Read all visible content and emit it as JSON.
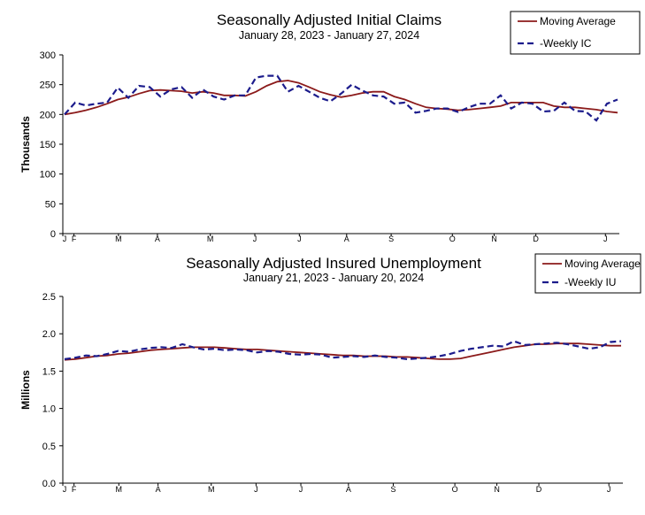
{
  "colors": {
    "moving_average": "#8b1a1a",
    "weekly": "#1c1c8c",
    "axis": "#000000",
    "background": "#ffffff"
  },
  "chart_data": [
    {
      "type": "line",
      "title": "Seasonally Adjusted Initial Claims",
      "subtitle": "January 28, 2023 - January 27, 2024",
      "ylabel": "Thousands",
      "xlabel": "",
      "ylim": [
        0,
        300
      ],
      "yticks": [
        "0",
        "50",
        "100",
        "150",
        "200",
        "250",
        "300"
      ],
      "xticks": [
        "J",
        "F",
        "M",
        "A",
        "M",
        "J",
        "J",
        "A",
        "S",
        "O",
        "N",
        "D",
        "J"
      ],
      "grid": false,
      "legend_position": "top-right",
      "x": [
        "2023-01-28",
        "2023-02-04",
        "2023-02-11",
        "2023-02-18",
        "2023-02-25",
        "2023-03-04",
        "2023-03-11",
        "2023-03-18",
        "2023-03-25",
        "2023-04-01",
        "2023-04-08",
        "2023-04-15",
        "2023-04-22",
        "2023-04-29",
        "2023-05-06",
        "2023-05-13",
        "2023-05-20",
        "2023-05-27",
        "2023-06-03",
        "2023-06-10",
        "2023-06-17",
        "2023-06-24",
        "2023-07-01",
        "2023-07-08",
        "2023-07-15",
        "2023-07-22",
        "2023-07-29",
        "2023-08-05",
        "2023-08-12",
        "2023-08-19",
        "2023-08-26",
        "2023-09-02",
        "2023-09-09",
        "2023-09-16",
        "2023-09-23",
        "2023-09-30",
        "2023-10-07",
        "2023-10-14",
        "2023-10-21",
        "2023-10-28",
        "2023-11-04",
        "2023-11-11",
        "2023-11-18",
        "2023-11-25",
        "2023-12-02",
        "2023-12-09",
        "2023-12-16",
        "2023-12-23",
        "2023-12-30",
        "2024-01-06",
        "2024-01-13",
        "2024-01-20",
        "2024-01-27"
      ],
      "series": [
        {
          "name": "Moving Average",
          "values": [
            200,
            203,
            207,
            212,
            218,
            225,
            229,
            235,
            240,
            241,
            240,
            239,
            236,
            238,
            236,
            232,
            232,
            231,
            238,
            248,
            255,
            257,
            253,
            246,
            238,
            233,
            229,
            232,
            236,
            238,
            238,
            230,
            225,
            218,
            212,
            210,
            209,
            207,
            208,
            210,
            212,
            214,
            220,
            220,
            220,
            220,
            214,
            212,
            212,
            210,
            208,
            205,
            203
          ]
        },
        {
          "name": "Weekly IC",
          "values": [
            200,
            220,
            215,
            218,
            220,
            245,
            228,
            248,
            246,
            230,
            242,
            246,
            228,
            242,
            230,
            225,
            232,
            232,
            262,
            265,
            265,
            238,
            248,
            238,
            228,
            222,
            235,
            250,
            240,
            232,
            230,
            218,
            220,
            203,
            206,
            210,
            210,
            204,
            212,
            218,
            218,
            232,
            210,
            220,
            218,
            205,
            206,
            220,
            206,
            205,
            190,
            218,
            225
          ]
        }
      ]
    },
    {
      "type": "line",
      "title": "Seasonally Adjusted Insured Unemployment",
      "subtitle": "January 21, 2023 - January 20, 2024",
      "ylabel": "Millions",
      "xlabel": "",
      "ylim": [
        0.0,
        2.5
      ],
      "yticks": [
        "0.0",
        "0.5",
        "1.0",
        "1.5",
        "2.0",
        "2.5"
      ],
      "xticks": [
        "J",
        "F",
        "M",
        "A",
        "M",
        "J",
        "J",
        "A",
        "S",
        "O",
        "N",
        "D",
        "J"
      ],
      "grid": false,
      "legend_position": "top-right",
      "x": [
        "2023-01-21",
        "2023-01-28",
        "2023-02-04",
        "2023-02-11",
        "2023-02-18",
        "2023-02-25",
        "2023-03-04",
        "2023-03-11",
        "2023-03-18",
        "2023-03-25",
        "2023-04-01",
        "2023-04-08",
        "2023-04-15",
        "2023-04-22",
        "2023-04-29",
        "2023-05-06",
        "2023-05-13",
        "2023-05-20",
        "2023-05-27",
        "2023-06-03",
        "2023-06-10",
        "2023-06-17",
        "2023-06-24",
        "2023-07-01",
        "2023-07-08",
        "2023-07-15",
        "2023-07-22",
        "2023-07-29",
        "2023-08-05",
        "2023-08-12",
        "2023-08-19",
        "2023-08-26",
        "2023-09-02",
        "2023-09-09",
        "2023-09-16",
        "2023-09-23",
        "2023-09-30",
        "2023-10-07",
        "2023-10-14",
        "2023-10-21",
        "2023-10-28",
        "2023-11-04",
        "2023-11-11",
        "2023-11-18",
        "2023-11-25",
        "2023-12-02",
        "2023-12-09",
        "2023-12-16",
        "2023-12-23",
        "2023-12-30",
        "2024-01-06",
        "2024-01-13",
        "2024-01-20"
      ],
      "series": [
        {
          "name": "Moving Average",
          "values": [
            1.65,
            1.66,
            1.68,
            1.7,
            1.71,
            1.73,
            1.74,
            1.76,
            1.78,
            1.79,
            1.8,
            1.81,
            1.82,
            1.82,
            1.82,
            1.81,
            1.8,
            1.79,
            1.79,
            1.78,
            1.77,
            1.76,
            1.75,
            1.74,
            1.73,
            1.72,
            1.71,
            1.71,
            1.7,
            1.7,
            1.7,
            1.69,
            1.69,
            1.68,
            1.67,
            1.66,
            1.66,
            1.67,
            1.7,
            1.73,
            1.76,
            1.79,
            1.82,
            1.84,
            1.86,
            1.86,
            1.87,
            1.87,
            1.87,
            1.86,
            1.85,
            1.84,
            1.84
          ]
        },
        {
          "name": "Weekly IU",
          "values": [
            1.66,
            1.68,
            1.71,
            1.7,
            1.73,
            1.77,
            1.76,
            1.79,
            1.81,
            1.82,
            1.81,
            1.86,
            1.82,
            1.79,
            1.8,
            1.78,
            1.79,
            1.78,
            1.75,
            1.77,
            1.76,
            1.73,
            1.72,
            1.73,
            1.72,
            1.68,
            1.69,
            1.7,
            1.69,
            1.71,
            1.69,
            1.68,
            1.66,
            1.67,
            1.68,
            1.7,
            1.73,
            1.77,
            1.8,
            1.82,
            1.84,
            1.83,
            1.9,
            1.85,
            1.86,
            1.87,
            1.88,
            1.86,
            1.83,
            1.8,
            1.82,
            1.89,
            1.9
          ]
        }
      ]
    }
  ]
}
